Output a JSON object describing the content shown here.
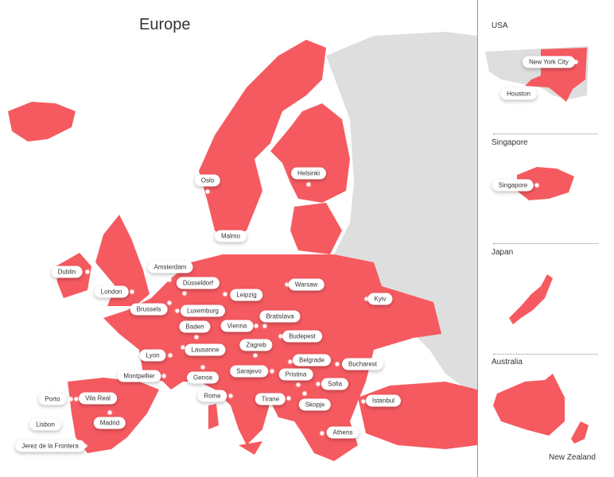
{
  "title": "Europe",
  "colors": {
    "highlight": "#f55a60",
    "other_land": "#dedede",
    "background": "#ffffff"
  },
  "cities": [
    "Oslo",
    "Helsinki",
    "Malmo",
    "Dublin",
    "Amsterdam",
    "London",
    "Düsseldorf",
    "Leipzig",
    "Warsaw",
    "Kyiv",
    "Brussels",
    "Luxemburg",
    "Bratislava",
    "Baden",
    "Vienna",
    "Budepest",
    "Zagreb",
    "Lausanne",
    "Lyon",
    "Belgrade",
    "Bucharest",
    "Sarajevo",
    "Pristina",
    "Montpellier",
    "Genoa",
    "Sofia",
    "Rome",
    "Tirane",
    "Istanbul",
    "Porto",
    "Vila Real",
    "Skopje",
    "Madrid",
    "Lisbon",
    "Athens",
    "Jerez de la Frontera"
  ],
  "insets": [
    {
      "title": "USA",
      "cities": [
        "New York City",
        "Houston"
      ]
    },
    {
      "title": "Singapore",
      "cities": [
        "Singapore"
      ]
    },
    {
      "title": "Japan",
      "cities": []
    },
    {
      "title": "Australia",
      "cities": [],
      "extra_label": "New Zealand"
    }
  ]
}
